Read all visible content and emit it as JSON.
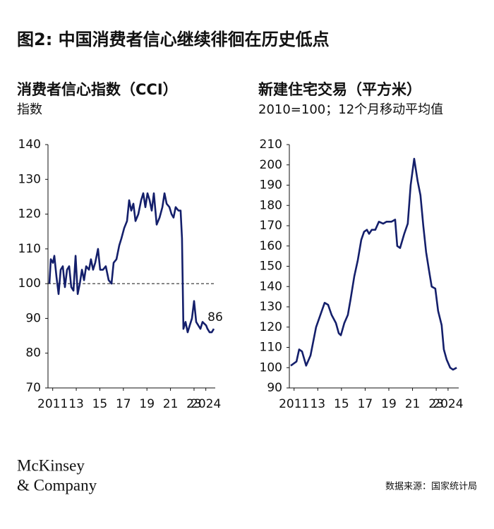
{
  "header": {
    "title": "图2: 中国消费者信心继续徘徊在历史低点"
  },
  "chart_data": [
    {
      "type": "line",
      "title": "消费者信心指数（CCI）",
      "subtitle": "指数",
      "color": "#141f6b",
      "xlim": [
        2010.6,
        2024.8
      ],
      "ylim": [
        70,
        140
      ],
      "xticks": [
        2011,
        {
          "value": 2013,
          "label": "13"
        },
        {
          "value": 2015,
          "label": "15"
        },
        {
          "value": 2017,
          "label": "17"
        },
        {
          "value": 2019,
          "label": "19"
        },
        {
          "value": 2021,
          "label": "21"
        },
        {
          "value": 2023,
          "label": "23"
        },
        2024
      ],
      "yticks": [
        70,
        80,
        90,
        100,
        110,
        120,
        130,
        140
      ],
      "hline": 100,
      "annotation": "86",
      "x": [
        2010.72,
        2010.84,
        2011.02,
        2011.14,
        2011.32,
        2011.5,
        2011.68,
        2011.86,
        2012.04,
        2012.22,
        2012.4,
        2012.58,
        2012.76,
        2012.94,
        2013.12,
        2013.3,
        2013.48,
        2013.66,
        2013.84,
        2014.08,
        2014.25,
        2014.43,
        2014.61,
        2014.85,
        2015.03,
        2015.27,
        2015.51,
        2015.75,
        2015.99,
        2016.17,
        2016.41,
        2016.65,
        2016.83,
        2017.07,
        2017.31,
        2017.49,
        2017.67,
        2017.85,
        2018.03,
        2018.27,
        2018.51,
        2018.69,
        2018.87,
        2019.05,
        2019.23,
        2019.41,
        2019.59,
        2019.83,
        2020.07,
        2020.31,
        2020.49,
        2020.67,
        2020.91,
        2021.09,
        2021.26,
        2021.44,
        2021.68,
        2021.86,
        2021.98,
        2022.1,
        2022.28,
        2022.46,
        2022.64,
        2022.82,
        2023.0,
        2023.18,
        2023.36,
        2023.54,
        2023.72,
        2024.02,
        2024.14,
        2024.32,
        2024.5,
        2024.68
      ],
      "values": [
        100,
        107,
        106,
        108,
        102,
        97,
        104,
        105,
        99,
        104,
        105,
        99,
        98,
        108,
        97,
        100,
        104,
        101,
        105,
        104,
        107,
        104,
        106,
        110,
        104,
        104,
        105,
        101,
        100,
        106,
        107,
        111,
        113,
        116,
        118,
        124,
        121,
        123,
        118,
        120,
        124,
        126,
        122,
        126,
        124,
        121,
        126,
        117,
        119,
        122,
        126,
        123,
        122,
        120,
        119,
        122,
        121,
        121,
        113,
        87,
        89,
        86,
        88,
        90,
        95,
        89,
        88,
        87,
        89,
        88,
        87,
        86,
        86,
        87
      ]
    },
    {
      "type": "line",
      "title": "新建住宅交易（平方米）",
      "subtitle": "2010=100；12个月移动平均值",
      "color": "#141f6b",
      "xlim": [
        2010.6,
        2024.9
      ],
      "ylim": [
        90,
        210
      ],
      "xticks": [
        2011,
        {
          "value": 2013,
          "label": "13"
        },
        {
          "value": 2015,
          "label": "15"
        },
        {
          "value": 2017,
          "label": "17"
        },
        {
          "value": 2019,
          "label": "19"
        },
        {
          "value": 2021,
          "label": "21"
        },
        {
          "value": 2023,
          "label": "23"
        },
        2024
      ],
      "yticks": [
        90,
        100,
        110,
        120,
        130,
        140,
        150,
        160,
        170,
        180,
        190,
        200,
        210
      ],
      "x": [
        2010.72,
        2011.2,
        2011.43,
        2011.67,
        2012.02,
        2012.39,
        2012.86,
        2013.28,
        2013.58,
        2013.87,
        2014.17,
        2014.53,
        2014.77,
        2014.95,
        2015.24,
        2015.54,
        2015.78,
        2016.08,
        2016.38,
        2016.67,
        2016.91,
        2017.15,
        2017.33,
        2017.56,
        2017.86,
        2018.16,
        2018.52,
        2018.81,
        2019.23,
        2019.53,
        2019.71,
        2019.95,
        2020.3,
        2020.6,
        2020.84,
        2021.14,
        2021.43,
        2021.67,
        2021.91,
        2022.15,
        2022.39,
        2022.62,
        2022.92,
        2023.16,
        2023.46,
        2023.64,
        2023.88,
        2024.18,
        2024.42,
        2024.73
      ],
      "values": [
        101,
        103,
        109,
        108,
        101,
        106,
        120,
        127,
        132,
        131,
        126,
        122,
        117,
        116,
        122,
        126,
        134,
        145,
        153,
        163,
        167,
        168,
        166,
        168,
        168,
        172,
        171,
        172,
        172,
        173,
        160,
        159,
        166,
        171,
        190,
        203,
        192,
        185,
        170,
        157,
        148,
        140,
        139,
        128,
        121,
        109,
        104,
        100,
        99,
        100
      ]
    }
  ],
  "footer": {
    "logo": [
      "McKinsey",
      "& Company"
    ],
    "source": "数据来源：国家统计局"
  }
}
